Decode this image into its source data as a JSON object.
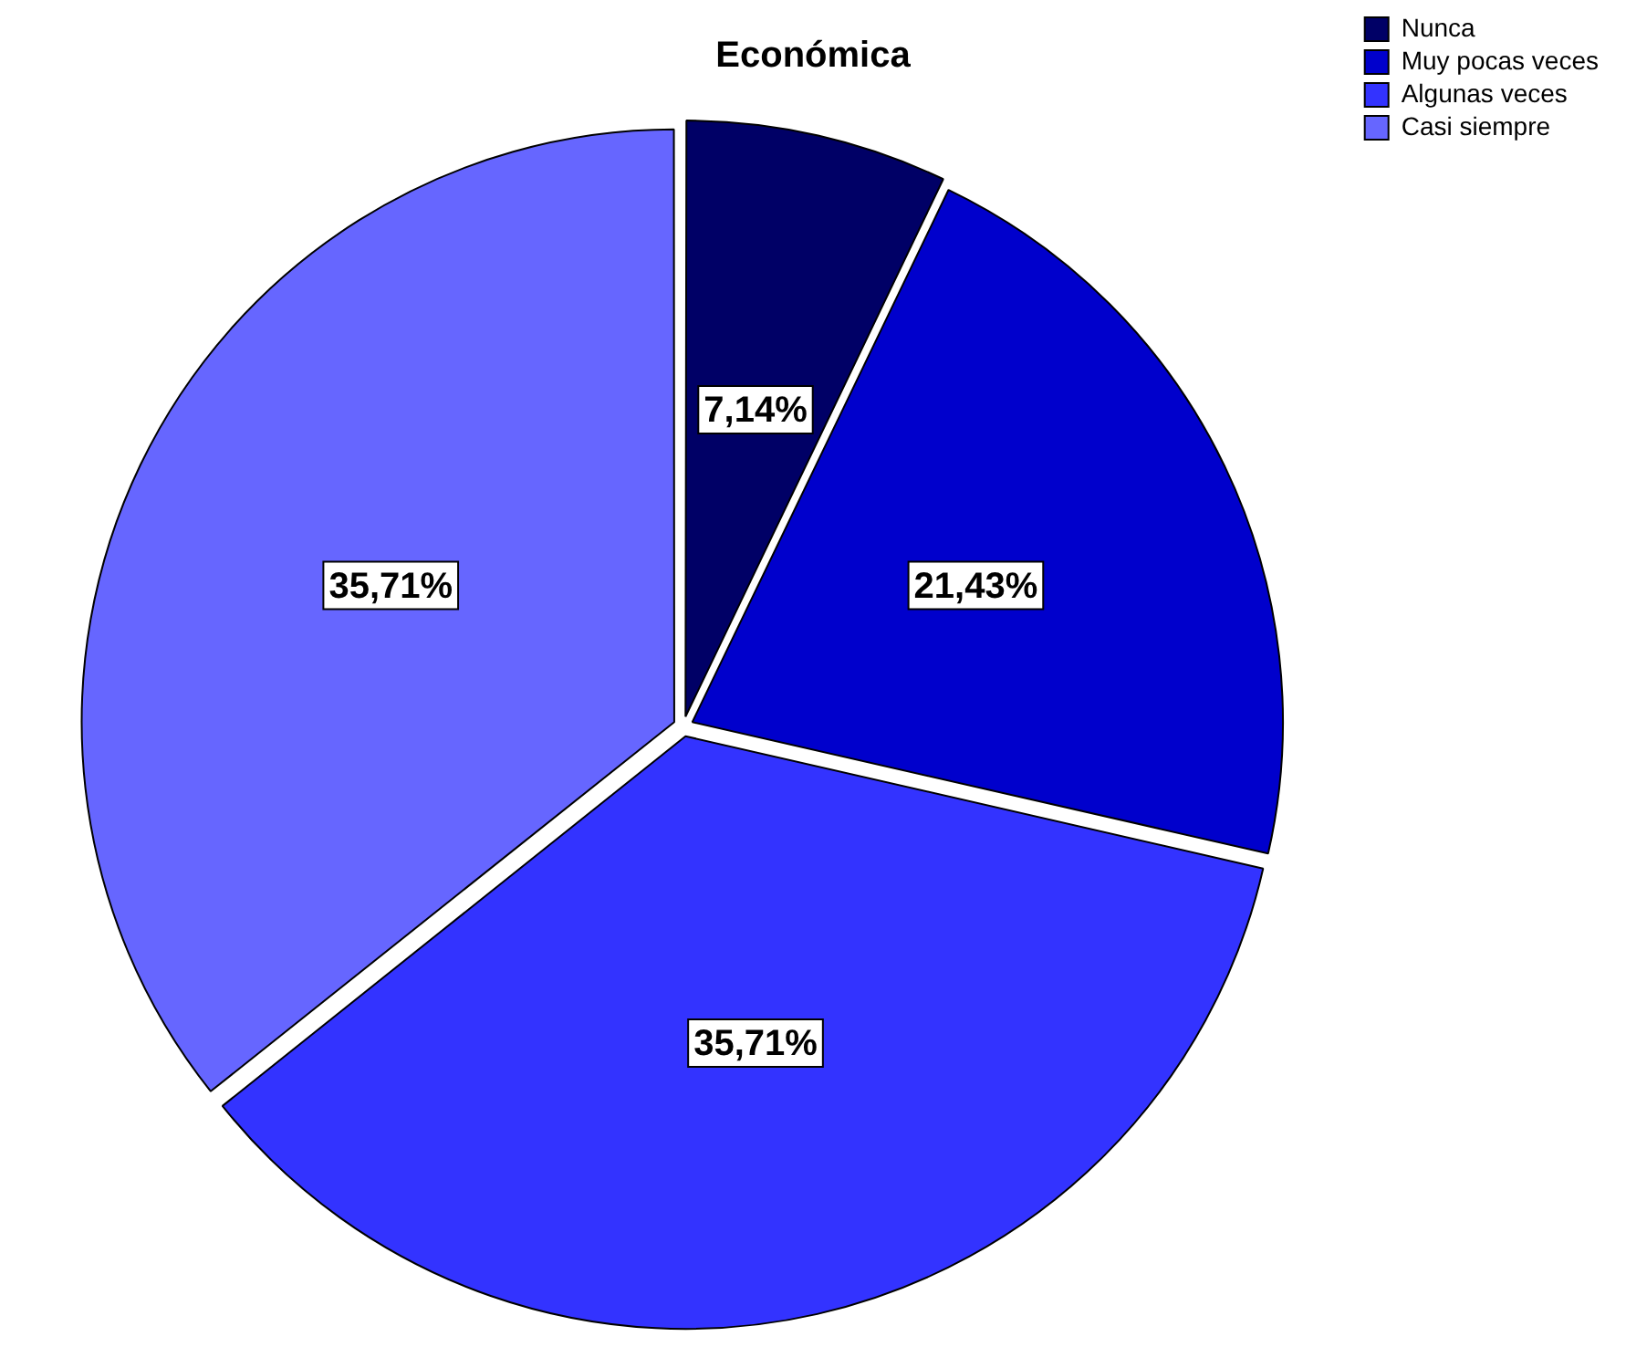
{
  "chart_data": {
    "type": "pie",
    "title": "Económica",
    "categories": [
      "Nunca",
      "Muy pocas veces",
      "Algunas veces",
      "Casi siempre"
    ],
    "values": [
      7.14,
      21.43,
      35.71,
      35.71
    ],
    "colors": [
      "#000066",
      "#0000cc",
      "#3333ff",
      "#6666ff"
    ],
    "value_labels": [
      "7,14%",
      "21,43%",
      "35,71%",
      "35,71%"
    ],
    "legend": "top right"
  }
}
